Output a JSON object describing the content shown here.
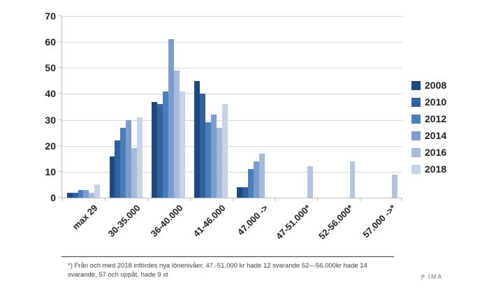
{
  "chart_data": {
    "type": "bar",
    "title": "",
    "xlabel": "",
    "ylabel": "",
    "ylim": [
      0,
      70
    ],
    "ytick_step": 10,
    "grid": true,
    "legend_position": "right",
    "categories": [
      "max 29",
      "30-35.000",
      "36-40.000",
      "41-46.000",
      "47.000 ->",
      "47-51.000*",
      "52-56.000*",
      "57.000 ->*"
    ],
    "series": [
      {
        "name": "2008",
        "color": "#1F497D",
        "values": [
          2,
          16,
          37,
          45,
          4,
          null,
          null,
          null
        ]
      },
      {
        "name": "2010",
        "color": "#31619E",
        "values": [
          2,
          22,
          36,
          40,
          4,
          null,
          null,
          null
        ]
      },
      {
        "name": "2012",
        "color": "#4A7EBB",
        "values": [
          3,
          27,
          41,
          29,
          11,
          null,
          null,
          null
        ]
      },
      {
        "name": "2014",
        "color": "#7C9CCD",
        "values": [
          3,
          30,
          61,
          32,
          14,
          null,
          null,
          null
        ]
      },
      {
        "name": "2016",
        "color": "#A6BADB",
        "values": [
          2,
          19,
          49,
          27,
          17,
          null,
          null,
          null
        ]
      },
      {
        "name": "2018",
        "color": "#C7D3E8",
        "values": [
          5,
          31,
          41,
          36,
          null,
          12,
          14,
          9
        ]
      }
    ],
    "starred_categories": [
      5,
      6,
      7
    ],
    "starred_bar_color": "#B3C4E1"
  },
  "colors": {
    "gridline": "#D8D8D8",
    "axis": "#BFBFBF"
  },
  "footnote": {
    "text": "*) Från  och med 2018 infördes nya lönenivåer, 47.-51.000 kr hade 12 svarande 52—56.000kr hade 14 svarande, 57 och uppåt, hade 9 st"
  },
  "branding": {
    "label": "IMA"
  }
}
